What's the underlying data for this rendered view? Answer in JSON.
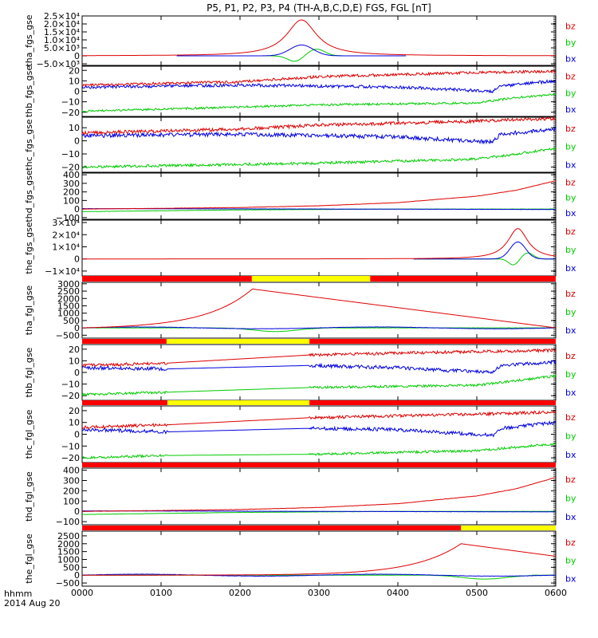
{
  "chart_data": {
    "type": "line",
    "title": "P5, P1, P2, P3, P4 (TH-A,B,C,D,E) FGS, FGL [nT]",
    "corner_label_1": "hhmm",
    "corner_label_2": "2014 Aug 20",
    "x_ticks": [
      "0000",
      "0100",
      "0200",
      "0300",
      "0400",
      "0500",
      "0600"
    ],
    "x_range_hours": [
      0,
      6
    ],
    "legend": [
      {
        "name": "bz",
        "color": "#dd0000"
      },
      {
        "name": "by",
        "color": "#00cc00"
      },
      {
        "name": "bx",
        "color": "#0000dd"
      }
    ],
    "status_bar_colors": {
      "red": "#ff0000",
      "yellow": "#ffff00"
    },
    "panels": [
      {
        "ylabel": "tha_fgs_gse",
        "ylim": [
          -6000,
          25000
        ],
        "kind": "peak",
        "yticks": [
          {
            "v": 25000,
            "t": "2.5×10⁴"
          },
          {
            "v": 20000,
            "t": "2.0×10⁴"
          },
          {
            "v": 15000,
            "t": "1.5×10⁴"
          },
          {
            "v": 10000,
            "t": "1.0×10⁴"
          },
          {
            "v": 5000,
            "t": "5.0×10³"
          },
          {
            "v": 0,
            "t": "0"
          },
          {
            "v": -5000,
            "t": "−5.0×10³"
          }
        ],
        "data_range": [
          1.2,
          4.1
        ],
        "peak_time": 2.78,
        "bz_peak": 22500,
        "bx_peak": 6800,
        "by_peak": 4200,
        "by_dip": -3500
      },
      {
        "ylabel": "thb_fgs_gse",
        "ylim": [
          -24,
          24
        ],
        "kind": "noisy",
        "yticks": [
          {
            "v": 20,
            "t": "20"
          },
          {
            "v": 10,
            "t": "10"
          },
          {
            "v": 0,
            "t": "0"
          },
          {
            "v": -10,
            "t": "−10"
          },
          {
            "v": -20,
            "t": "−20"
          }
        ],
        "bz": [
          [
            0,
            6
          ],
          [
            2,
            9
          ],
          [
            3,
            14
          ],
          [
            5,
            18
          ],
          [
            6,
            19
          ]
        ],
        "bx": [
          [
            0,
            4
          ],
          [
            2,
            6
          ],
          [
            4,
            4
          ],
          [
            5.2,
            0
          ],
          [
            5.3,
            5
          ],
          [
            6,
            10
          ]
        ],
        "by": [
          [
            0,
            -19
          ],
          [
            2,
            -15
          ],
          [
            3,
            -13
          ],
          [
            5,
            -11
          ],
          [
            5.5,
            -6
          ],
          [
            6,
            -3
          ]
        ]
      },
      {
        "ylabel": "thc_fgs_gse",
        "ylim": [
          -24,
          18
        ],
        "kind": "noisy",
        "yticks": [
          {
            "v": 10,
            "t": "10"
          },
          {
            "v": 0,
            "t": "0"
          },
          {
            "v": -10,
            "t": "−10"
          },
          {
            "v": -20,
            "t": "−20"
          }
        ],
        "bz": [
          [
            0,
            6
          ],
          [
            2,
            9
          ],
          [
            3,
            12
          ],
          [
            5,
            15
          ],
          [
            6,
            17
          ]
        ],
        "bx": [
          [
            0,
            4
          ],
          [
            2,
            5
          ],
          [
            4,
            3
          ],
          [
            5.2,
            -1
          ],
          [
            5.3,
            5
          ],
          [
            6,
            9
          ]
        ],
        "by": [
          [
            0,
            -20
          ],
          [
            2,
            -18
          ],
          [
            3,
            -17
          ],
          [
            5,
            -14
          ],
          [
            5.5,
            -10
          ],
          [
            6,
            -6
          ]
        ]
      },
      {
        "ylabel": "thd_fgs_gse",
        "ylim": [
          -120,
          420
        ],
        "kind": "rise",
        "yticks": [
          {
            "v": 400,
            "t": "400"
          },
          {
            "v": 300,
            "t": "300"
          },
          {
            "v": 200,
            "t": "200"
          },
          {
            "v": 100,
            "t": "100"
          },
          {
            "v": 0,
            "t": "0"
          },
          {
            "v": -100,
            "t": "−100"
          }
        ],
        "bz": [
          [
            0,
            0
          ],
          [
            1,
            8
          ],
          [
            2,
            18
          ],
          [
            3,
            38
          ],
          [
            4,
            75
          ],
          [
            5,
            150
          ],
          [
            5.5,
            220
          ],
          [
            6,
            330
          ]
        ],
        "bx": [
          [
            0,
            5
          ],
          [
            3,
            0
          ],
          [
            6,
            -5
          ]
        ],
        "by": [
          [
            0,
            -30
          ],
          [
            1,
            -20
          ],
          [
            2,
            -10
          ],
          [
            3,
            -5
          ],
          [
            4,
            0
          ],
          [
            6,
            0
          ]
        ]
      },
      {
        "ylabel": "the_fgs_gse",
        "ylim": [
          -14000,
          32000
        ],
        "kind": "peak",
        "yticks": [
          {
            "v": 30000,
            "t": "3×10⁴"
          },
          {
            "v": 20000,
            "t": "2×10⁴"
          },
          {
            "v": 10000,
            "t": "1×10⁴"
          },
          {
            "v": 0,
            "t": "0"
          },
          {
            "v": -10000,
            "t": "−1×10⁴"
          }
        ],
        "data_range": [
          4.2,
          6.0
        ],
        "peak_time": 5.52,
        "bz_peak": 25000,
        "bx_peak": 14000,
        "by_peak": 5000,
        "by_dip": -5000
      },
      {
        "ylabel": "tha_fgl_gse",
        "ylim": [
          -700,
          3100
        ],
        "kind": "fgl_peak",
        "yticks": [
          {
            "v": 3000,
            "t": "3000"
          },
          {
            "v": 2500,
            "t": "2500"
          },
          {
            "v": 2000,
            "t": "2000"
          },
          {
            "v": 1500,
            "t": "1500"
          },
          {
            "v": 1000,
            "t": "1000"
          },
          {
            "v": 500,
            "t": "500"
          },
          {
            "v": 0,
            "t": "0"
          },
          {
            "v": -500,
            "t": "−500"
          }
        ],
        "bar": [
          [
            "red",
            0,
            2.15
          ],
          [
            "yellow",
            2.15,
            3.65
          ],
          [
            "red",
            3.65,
            6
          ]
        ],
        "peak_time": 2.15,
        "bz_peak": 2650,
        "bz_end": 0
      },
      {
        "ylabel": "thb_fgl_gse",
        "ylim": [
          -24,
          24
        ],
        "kind": "noisy",
        "yticks": [
          {
            "v": 20,
            "t": "20"
          },
          {
            "v": 10,
            "t": "10"
          },
          {
            "v": 0,
            "t": "0"
          },
          {
            "v": -10,
            "t": "−10"
          },
          {
            "v": -20,
            "t": "−20"
          }
        ],
        "bar": [
          [
            "red",
            0,
            1.07
          ],
          [
            "yellow",
            1.07,
            2.88
          ],
          [
            "red",
            2.88,
            6
          ]
        ],
        "gap": [
          1.07,
          2.88
        ],
        "bz": [
          [
            0,
            6
          ],
          [
            1.07,
            8
          ],
          [
            2.88,
            15
          ],
          [
            5,
            18
          ],
          [
            6,
            19
          ]
        ],
        "bx": [
          [
            0,
            4
          ],
          [
            1.07,
            3
          ],
          [
            2.88,
            6
          ],
          [
            4,
            4
          ],
          [
            5.2,
            0
          ],
          [
            5.3,
            6
          ],
          [
            6,
            9
          ]
        ],
        "by": [
          [
            0,
            -19
          ],
          [
            1.07,
            -17
          ],
          [
            2.88,
            -13
          ],
          [
            5,
            -11
          ],
          [
            5.5,
            -7
          ],
          [
            6,
            -3
          ]
        ]
      },
      {
        "ylabel": "thc_fgl_gse",
        "ylim": [
          -24,
          24
        ],
        "kind": "noisy",
        "yticks": [
          {
            "v": 20,
            "t": "20"
          },
          {
            "v": 10,
            "t": "10"
          },
          {
            "v": 0,
            "t": "0"
          },
          {
            "v": -10,
            "t": "−10"
          },
          {
            "v": -20,
            "t": "−20"
          }
        ],
        "bar": [
          [
            "red",
            0,
            1.08
          ],
          [
            "yellow",
            1.08,
            2.88
          ],
          [
            "red",
            2.88,
            6
          ]
        ],
        "gap": [
          1.08,
          2.88
        ],
        "bz": [
          [
            0,
            6
          ],
          [
            1.08,
            8
          ],
          [
            2.88,
            14
          ],
          [
            5,
            17
          ],
          [
            6,
            19
          ]
        ],
        "bx": [
          [
            0,
            4
          ],
          [
            1.08,
            2
          ],
          [
            2.88,
            5
          ],
          [
            4,
            4
          ],
          [
            5.2,
            -1
          ],
          [
            5.3,
            5
          ],
          [
            6,
            10
          ]
        ],
        "by": [
          [
            0,
            -20
          ],
          [
            1.08,
            -18
          ],
          [
            2.88,
            -17
          ],
          [
            5,
            -14
          ],
          [
            5.5,
            -11
          ],
          [
            6,
            -8
          ]
        ]
      },
      {
        "ylabel": "thd_fgl_gse",
        "ylim": [
          -130,
          420
        ],
        "kind": "rise",
        "yticks": [
          {
            "v": 400,
            "t": "400"
          },
          {
            "v": 300,
            "t": "300"
          },
          {
            "v": 200,
            "t": "200"
          },
          {
            "v": 100,
            "t": "100"
          },
          {
            "v": 0,
            "t": "0"
          },
          {
            "v": -100,
            "t": "−100"
          }
        ],
        "bar": [
          [
            "red",
            0,
            6
          ]
        ],
        "bz": [
          [
            0,
            0
          ],
          [
            1,
            8
          ],
          [
            2,
            18
          ],
          [
            3,
            38
          ],
          [
            4,
            75
          ],
          [
            5,
            150
          ],
          [
            5.5,
            220
          ],
          [
            6,
            330
          ]
        ],
        "bx": [
          [
            0,
            5
          ],
          [
            3,
            0
          ],
          [
            6,
            -5
          ]
        ],
        "by": [
          [
            0,
            -30
          ],
          [
            1,
            -20
          ],
          [
            2,
            -10
          ],
          [
            3,
            -5
          ],
          [
            4,
            0
          ],
          [
            6,
            0
          ]
        ]
      },
      {
        "ylabel": "the_fgl_gse",
        "ylim": [
          -700,
          2800
        ],
        "kind": "fgl_peak",
        "yticks": [
          {
            "v": 2500,
            "t": "2500"
          },
          {
            "v": 2000,
            "t": "2000"
          },
          {
            "v": 1500,
            "t": "1500"
          },
          {
            "v": 1000,
            "t": "1000"
          },
          {
            "v": 500,
            "t": "500"
          },
          {
            "v": 0,
            "t": "0"
          },
          {
            "v": -500,
            "t": "−500"
          }
        ],
        "bar": [
          [
            "red",
            0,
            4.8
          ],
          [
            "yellow",
            4.8,
            6
          ]
        ],
        "peak_time": 4.8,
        "bz_peak": 2000,
        "bz_end": 1200
      }
    ]
  }
}
